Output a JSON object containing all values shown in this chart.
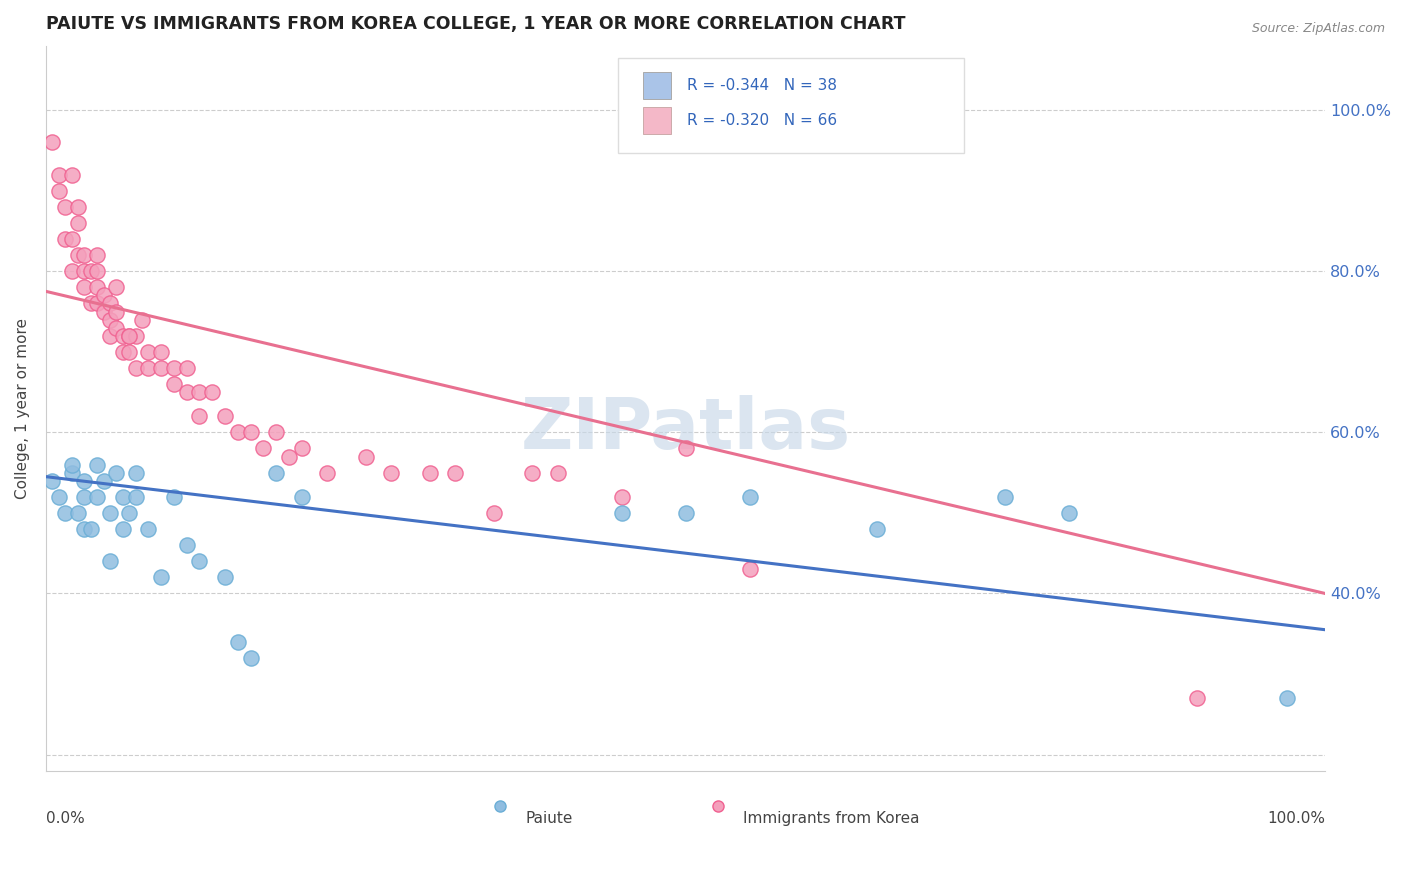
{
  "title": "PAIUTE VS IMMIGRANTS FROM KOREA COLLEGE, 1 YEAR OR MORE CORRELATION CHART",
  "source_text": "Source: ZipAtlas.com",
  "ylabel": "College, 1 year or more",
  "legend_color1": "#aac4e8",
  "legend_color2": "#f4b8c8",
  "paiute_color": "#90bde0",
  "korea_color": "#f4a0bc",
  "paiute_edge_color": "#6aaed6",
  "korea_edge_color": "#f06090",
  "paiute_line_color": "#4472c4",
  "korea_line_color": "#e87090",
  "watermark_color": "#c8d8e8",
  "paiute_scatter_x": [
    0.005,
    0.01,
    0.015,
    0.02,
    0.02,
    0.025,
    0.03,
    0.03,
    0.03,
    0.035,
    0.04,
    0.04,
    0.045,
    0.05,
    0.05,
    0.055,
    0.06,
    0.06,
    0.065,
    0.07,
    0.07,
    0.08,
    0.09,
    0.1,
    0.11,
    0.12,
    0.14,
    0.15,
    0.16,
    0.18,
    0.2,
    0.45,
    0.5,
    0.55,
    0.65,
    0.75,
    0.8,
    0.97
  ],
  "paiute_scatter_y": [
    0.54,
    0.52,
    0.5,
    0.55,
    0.56,
    0.5,
    0.48,
    0.52,
    0.54,
    0.48,
    0.56,
    0.52,
    0.54,
    0.44,
    0.5,
    0.55,
    0.52,
    0.48,
    0.5,
    0.55,
    0.52,
    0.48,
    0.42,
    0.52,
    0.46,
    0.44,
    0.42,
    0.34,
    0.32,
    0.55,
    0.52,
    0.5,
    0.5,
    0.52,
    0.48,
    0.52,
    0.5,
    0.27
  ],
  "korea_scatter_x": [
    0.005,
    0.01,
    0.01,
    0.015,
    0.015,
    0.02,
    0.02,
    0.025,
    0.025,
    0.03,
    0.03,
    0.03,
    0.035,
    0.035,
    0.04,
    0.04,
    0.04,
    0.045,
    0.045,
    0.05,
    0.05,
    0.05,
    0.055,
    0.055,
    0.06,
    0.06,
    0.065,
    0.065,
    0.07,
    0.07,
    0.075,
    0.08,
    0.08,
    0.09,
    0.09,
    0.1,
    0.1,
    0.11,
    0.11,
    0.12,
    0.12,
    0.13,
    0.14,
    0.15,
    0.16,
    0.17,
    0.18,
    0.19,
    0.2,
    0.22,
    0.25,
    0.27,
    0.3,
    0.32,
    0.35,
    0.38,
    0.4,
    0.45,
    0.5,
    0.55,
    0.02,
    0.025,
    0.04,
    0.055,
    0.065,
    0.9
  ],
  "korea_scatter_y": [
    0.96,
    0.9,
    0.92,
    0.84,
    0.88,
    0.84,
    0.8,
    0.82,
    0.86,
    0.78,
    0.82,
    0.8,
    0.76,
    0.8,
    0.8,
    0.76,
    0.78,
    0.75,
    0.77,
    0.74,
    0.72,
    0.76,
    0.73,
    0.75,
    0.72,
    0.7,
    0.7,
    0.72,
    0.72,
    0.68,
    0.74,
    0.68,
    0.7,
    0.68,
    0.7,
    0.68,
    0.66,
    0.65,
    0.68,
    0.65,
    0.62,
    0.65,
    0.62,
    0.6,
    0.6,
    0.58,
    0.6,
    0.57,
    0.58,
    0.55,
    0.57,
    0.55,
    0.55,
    0.55,
    0.5,
    0.55,
    0.55,
    0.52,
    0.58,
    0.43,
    0.92,
    0.88,
    0.82,
    0.78,
    0.72,
    0.27
  ],
  "xlim": [
    0.0,
    1.0
  ],
  "ylim": [
    0.18,
    1.08
  ],
  "yticks": [
    0.2,
    0.4,
    0.6,
    0.8,
    1.0
  ],
  "paiute_trend_y_start": 0.545,
  "paiute_trend_y_end": 0.355,
  "korea_trend_y_start": 0.775,
  "korea_trend_y_end": 0.4
}
